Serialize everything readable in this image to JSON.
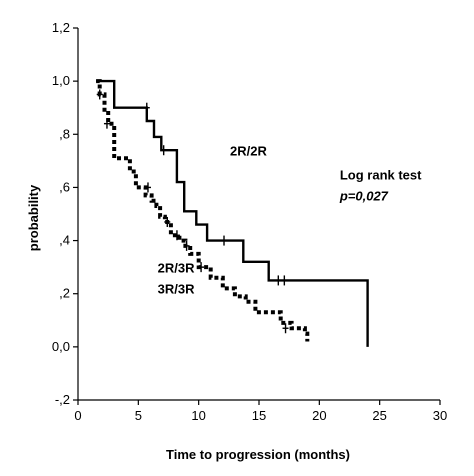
{
  "chart_data": {
    "type": "line",
    "title": "",
    "xlabel": "Time to progression (months)",
    "ylabel": "probability",
    "xlim": [
      0,
      30
    ],
    "ylim": [
      -0.2,
      1.2
    ],
    "x_ticks": [
      0,
      5,
      10,
      15,
      20,
      25,
      30
    ],
    "y_ticks": [
      -0.2,
      0.0,
      0.2,
      0.4,
      0.6,
      0.8,
      1.0,
      1.2
    ],
    "x_tick_labels": [
      "0",
      "5",
      "10",
      "15",
      "20",
      "25",
      "30"
    ],
    "y_tick_labels": [
      "-,2",
      "0,0",
      ",2",
      ",4",
      ",6",
      ",8",
      "1,0",
      "1,2"
    ],
    "grid": false,
    "series": [
      {
        "name": "2R/2R",
        "style": "solid",
        "points": [
          [
            1.5,
            1.0
          ],
          [
            3.0,
            1.0
          ],
          [
            3.0,
            0.9
          ],
          [
            5.7,
            0.9
          ],
          [
            5.7,
            0.85
          ],
          [
            6.3,
            0.85
          ],
          [
            6.3,
            0.79
          ],
          [
            6.9,
            0.79
          ],
          [
            6.9,
            0.74
          ],
          [
            8.2,
            0.74
          ],
          [
            8.2,
            0.62
          ],
          [
            8.8,
            0.62
          ],
          [
            8.8,
            0.51
          ],
          [
            9.8,
            0.51
          ],
          [
            9.8,
            0.46
          ],
          [
            10.7,
            0.46
          ],
          [
            10.7,
            0.4
          ],
          [
            13.7,
            0.4
          ],
          [
            13.7,
            0.32
          ],
          [
            15.8,
            0.32
          ],
          [
            15.8,
            0.25
          ],
          [
            24.0,
            0.25
          ],
          [
            24.0,
            0.0
          ]
        ],
        "censored": [
          [
            5.7,
            0.9
          ],
          [
            7.1,
            0.74
          ],
          [
            12.1,
            0.4
          ],
          [
            16.6,
            0.25
          ],
          [
            17.1,
            0.25
          ]
        ]
      },
      {
        "name": "2R/3R 3R/3R",
        "style": "dotted",
        "points": [
          [
            1.5,
            1.0
          ],
          [
            1.8,
            1.0
          ],
          [
            1.8,
            0.95
          ],
          [
            2.2,
            0.95
          ],
          [
            2.2,
            0.88
          ],
          [
            2.5,
            0.88
          ],
          [
            2.5,
            0.84
          ],
          [
            3.0,
            0.84
          ],
          [
            3.0,
            0.71
          ],
          [
            4.3,
            0.71
          ],
          [
            4.3,
            0.66
          ],
          [
            4.8,
            0.66
          ],
          [
            4.8,
            0.6
          ],
          [
            5.6,
            0.6
          ],
          [
            5.6,
            0.57
          ],
          [
            6.1,
            0.57
          ],
          [
            6.1,
            0.55
          ],
          [
            6.5,
            0.55
          ],
          [
            6.5,
            0.53
          ],
          [
            6.8,
            0.53
          ],
          [
            6.8,
            0.49
          ],
          [
            7.2,
            0.49
          ],
          [
            7.2,
            0.47
          ],
          [
            7.7,
            0.47
          ],
          [
            7.7,
            0.42
          ],
          [
            8.4,
            0.42
          ],
          [
            8.4,
            0.4
          ],
          [
            8.9,
            0.4
          ],
          [
            8.9,
            0.38
          ],
          [
            9.3,
            0.38
          ],
          [
            9.3,
            0.35
          ],
          [
            10.0,
            0.35
          ],
          [
            10.0,
            0.3
          ],
          [
            11.0,
            0.3
          ],
          [
            11.0,
            0.26
          ],
          [
            12.0,
            0.26
          ],
          [
            12.0,
            0.22
          ],
          [
            13.0,
            0.22
          ],
          [
            13.0,
            0.19
          ],
          [
            13.9,
            0.19
          ],
          [
            13.9,
            0.17
          ],
          [
            14.7,
            0.17
          ],
          [
            14.7,
            0.13
          ],
          [
            16.8,
            0.13
          ],
          [
            16.8,
            0.09
          ],
          [
            17.7,
            0.09
          ],
          [
            17.7,
            0.07
          ],
          [
            18.8,
            0.07
          ],
          [
            18.8,
            0.05
          ],
          [
            19.0,
            0.05
          ],
          [
            19.0,
            0.02
          ]
        ],
        "censored": [
          [
            1.8,
            0.95
          ],
          [
            2.4,
            0.84
          ],
          [
            5.8,
            0.6
          ],
          [
            7.4,
            0.47
          ],
          [
            8.2,
            0.42
          ],
          [
            9.0,
            0.38
          ],
          [
            10.2,
            0.3
          ],
          [
            17.2,
            0.07
          ]
        ]
      }
    ],
    "annotations": [
      {
        "text": "2R/2R",
        "bold": true,
        "italic": false,
        "x": 12.6,
        "y": 0.72
      },
      {
        "text": "Log rank test",
        "bold": true,
        "italic": false,
        "x": 21.7,
        "y": 0.63
      },
      {
        "text": "p=0,027",
        "bold": true,
        "italic": true,
        "x": 21.7,
        "y": 0.55
      },
      {
        "text": "2R/3R",
        "bold": true,
        "italic": false,
        "x": 6.6,
        "y": 0.28
      },
      {
        "text": "3R/3R",
        "bold": true,
        "italic": false,
        "x": 6.6,
        "y": 0.2
      }
    ]
  }
}
